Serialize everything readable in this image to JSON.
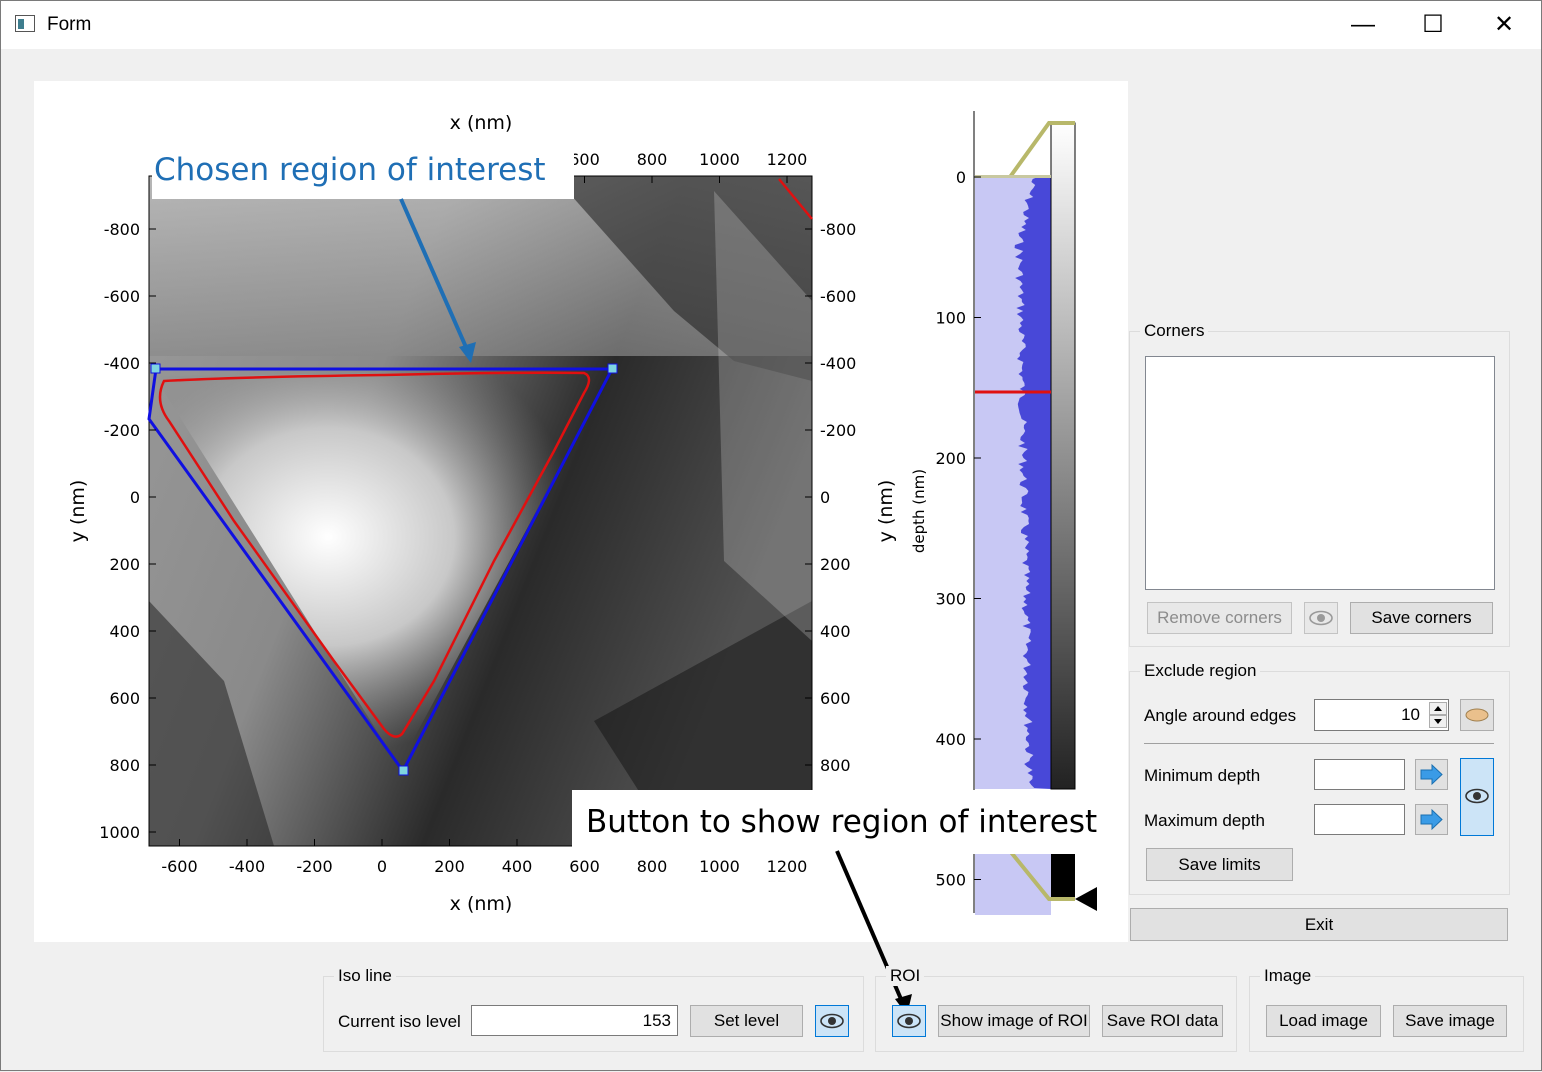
{
  "window": {
    "title": "Form",
    "minimize": "—",
    "maximize": "☐",
    "close": "✕"
  },
  "annotations": {
    "roi_label": "Chosen region of interest",
    "button_label": "Button to show region of interest"
  },
  "plot": {
    "xlabel": "x (nm)",
    "ylabel": "y (nm)",
    "x_ticks": [
      "-600",
      "-400",
      "-200",
      "0",
      "200",
      "400",
      "600",
      "800",
      "1000",
      "1200"
    ],
    "x_ticks_top": [
      "600",
      "800",
      "1000",
      "1200"
    ],
    "y_ticks": [
      "-800",
      "-600",
      "-400",
      "-200",
      "0",
      "200",
      "400",
      "600",
      "800",
      "1000"
    ],
    "y_ticks_right": [
      "-800",
      "-600",
      "-400",
      "-200",
      "0",
      "200",
      "400",
      "600",
      "800"
    ]
  },
  "histogram": {
    "ylabel_outer": "y (nm)",
    "ylabel": "depth (nm)",
    "ticks": [
      "0",
      "100",
      "200",
      "300",
      "400",
      "500"
    ]
  },
  "corners": {
    "title": "Corners",
    "remove_label": "Remove corners",
    "save_label": "Save corners"
  },
  "exclude": {
    "title": "Exclude region",
    "angle_label": "Angle around edges",
    "angle_value": "10",
    "min_label": "Minimum depth",
    "min_value": "",
    "max_label": "Maximum depth",
    "max_value": "",
    "save_limits_label": "Save limits"
  },
  "exit_label": "Exit",
  "iso": {
    "title": "Iso line",
    "current_label": "Current iso level",
    "value": "153",
    "set_label": "Set level"
  },
  "roi": {
    "title": "ROI",
    "show_label": "Show image of ROI",
    "save_label": "Save ROI data"
  },
  "image": {
    "title": "Image",
    "load_label": "Load image",
    "save_label": "Save image"
  }
}
